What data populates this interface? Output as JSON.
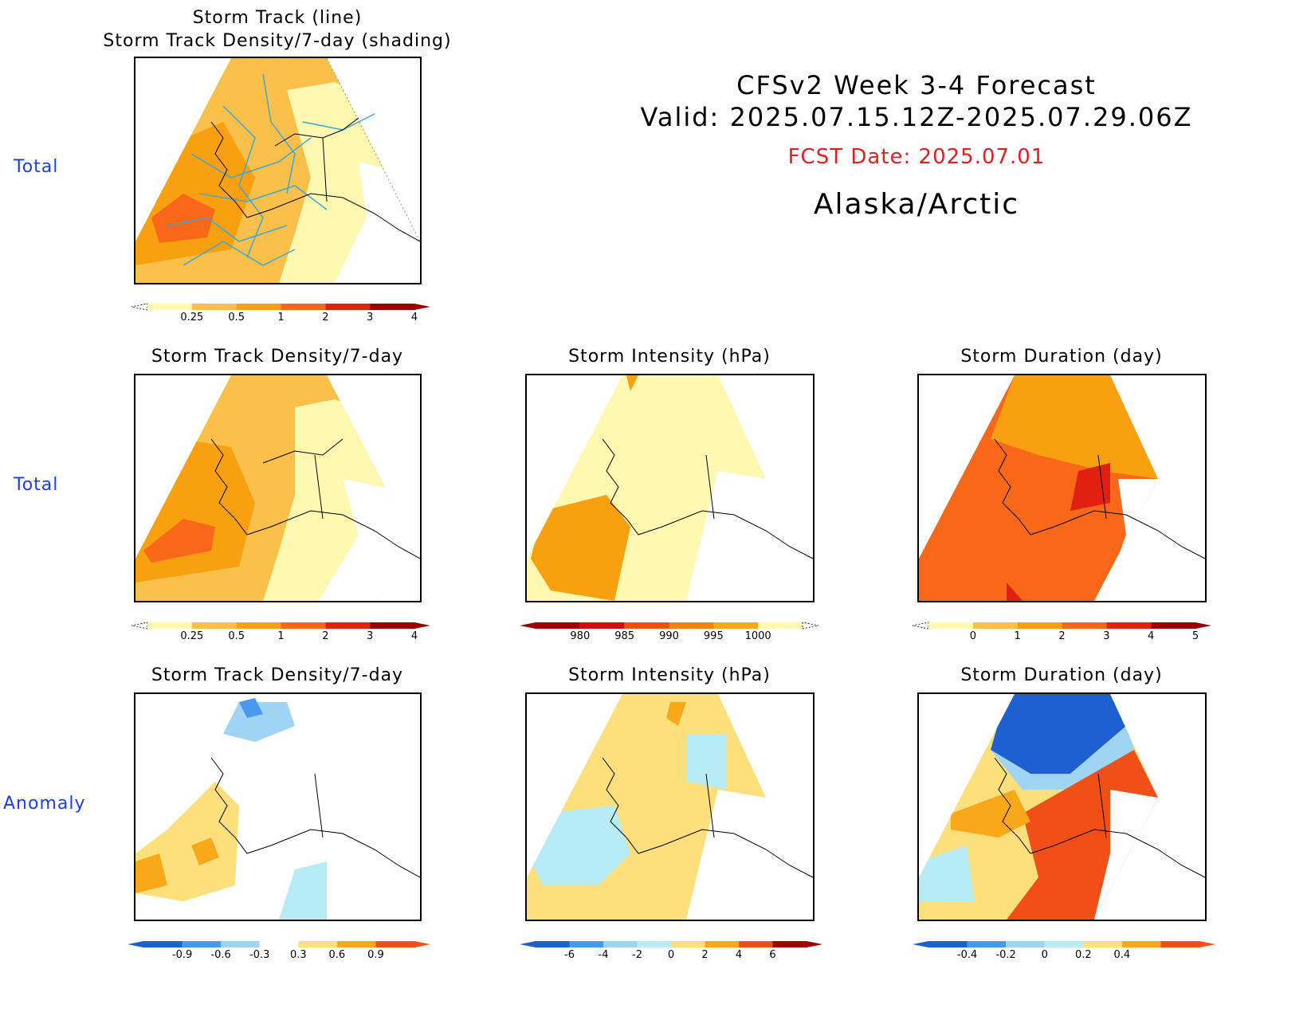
{
  "header": {
    "line1": "CFSv2 Week 3-4 Forecast",
    "line2": "Valid: 2025.07.15.12Z-2025.07.29.06Z",
    "fcst_date": "FCST Date: 2025.07.01",
    "region": "Alaska/Arctic",
    "fcst_color": "#e02020"
  },
  "row_labels": {
    "row1": "Total",
    "row2": "Total",
    "row3": "Anomaly"
  },
  "panels": {
    "top": {
      "title_line1": "Storm Track (line)",
      "title_line2": "Storm Track Density/7-day (shading)"
    },
    "total_density": {
      "title": "Storm Track Density/7-day"
    },
    "total_intensity": {
      "title": "Storm Intensity (hPa)"
    },
    "total_duration": {
      "title": "Storm Duration (day)"
    },
    "anom_density": {
      "title": "Storm Track Density/7-day"
    },
    "anom_intensity": {
      "title": "Storm Intensity (hPa)"
    },
    "anom_duration": {
      "title": "Storm Duration (day)"
    }
  },
  "colorbars": {
    "density_total": {
      "colors": [
        "#fff8b0",
        "#fbc04a",
        "#f8a010",
        "#f86818",
        "#e02010",
        "#9a0000"
      ],
      "labels": [
        "0.25",
        "0.5",
        "1",
        "2",
        "3",
        "4"
      ]
    },
    "intensity_total": {
      "colors": [
        "#a00000",
        "#d01010",
        "#f05010",
        "#f88010",
        "#f8a818",
        "#fff8b0"
      ],
      "labels": [
        "980",
        "985",
        "990",
        "995",
        "1000"
      ]
    },
    "duration_total": {
      "colors": [
        "#fff8b0",
        "#fbc04a",
        "#f8a010",
        "#f86818",
        "#e02010",
        "#9a0000"
      ],
      "labels": [
        "0",
        "1",
        "2",
        "3",
        "4",
        "5"
      ]
    },
    "density_anom": {
      "colors": [
        "#1e60d0",
        "#4a98ee",
        "#9fd4f4",
        "#ffffff",
        "#fde07c",
        "#f8a818",
        "#f05018"
      ],
      "labels": [
        "-0.9",
        "-0.6",
        "-0.3",
        "0.3",
        "0.6",
        "0.9"
      ]
    },
    "intensity_anom": {
      "colors": [
        "#1e60d0",
        "#4a98ee",
        "#9fd4f4",
        "#b8ecf4",
        "#fde07c",
        "#f8a818",
        "#f05018",
        "#a00000"
      ],
      "labels": [
        "-6",
        "-4",
        "-2",
        "0",
        "2",
        "4",
        "6"
      ]
    },
    "duration_anom": {
      "colors": [
        "#1e60d0",
        "#4a98ee",
        "#9fd4f4",
        "#b8ecf4",
        "#fde07c",
        "#f8a818",
        "#f05018"
      ],
      "labels": [
        "-0.4",
        "-0.2",
        "0",
        "0.2",
        "0.4"
      ]
    }
  }
}
